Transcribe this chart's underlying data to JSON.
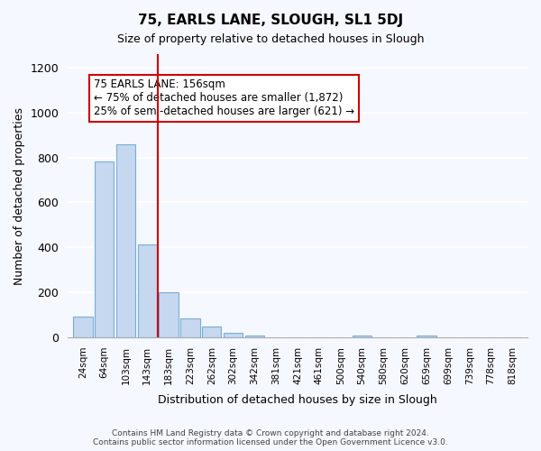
{
  "title": "75, EARLS LANE, SLOUGH, SL1 5DJ",
  "subtitle": "Size of property relative to detached houses in Slough",
  "xlabel": "Distribution of detached houses by size in Slough",
  "ylabel": "Number of detached properties",
  "categories": [
    "24sqm",
    "64sqm",
    "103sqm",
    "143sqm",
    "183sqm",
    "223sqm",
    "262sqm",
    "302sqm",
    "342sqm",
    "381sqm",
    "421sqm",
    "461sqm",
    "500sqm",
    "540sqm",
    "580sqm",
    "620sqm",
    "659sqm",
    "699sqm",
    "739sqm",
    "778sqm",
    "818sqm"
  ],
  "values": [
    93,
    782,
    858,
    413,
    200,
    85,
    50,
    22,
    8,
    2,
    0,
    0,
    0,
    10,
    0,
    0,
    10,
    0,
    0,
    0,
    0
  ],
  "bar_color": "#c5d8f0",
  "bar_edge_color": "#7aadd4",
  "vline_x": 3.5,
  "vline_color": "#cc0000",
  "annotation_text": "75 EARLS LANE: 156sqm\n← 75% of detached houses are smaller (1,872)\n25% of semi-detached houses are larger (621) →",
  "annotation_box_color": "#ffffff",
  "annotation_box_edge": "#cc0000",
  "ylim": [
    0,
    1260
  ],
  "yticks": [
    0,
    200,
    400,
    600,
    800,
    1000,
    1200
  ],
  "footer": "Contains HM Land Registry data © Crown copyright and database right 2024.\nContains public sector information licensed under the Open Government Licence v3.0.",
  "background_color": "#f5f8ff",
  "grid_color": "#ffffff"
}
